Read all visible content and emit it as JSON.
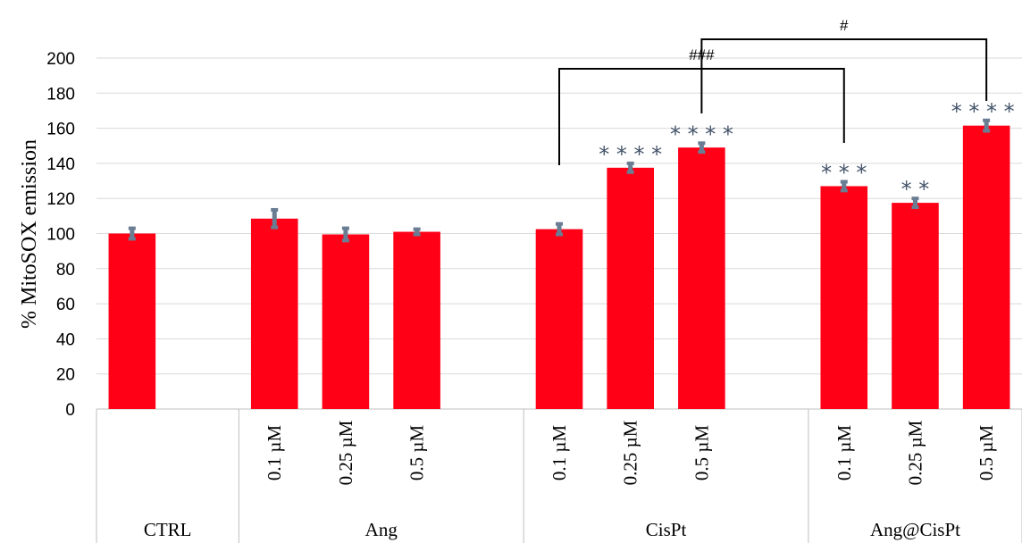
{
  "chart_data": {
    "type": "bar",
    "ylabel": "% MitoSOX emission",
    "ylim": [
      0,
      200
    ],
    "yticks": [
      "0",
      "20",
      "40",
      "60",
      "80",
      "100",
      "120",
      "140",
      "160",
      "180",
      "200"
    ],
    "grid": true,
    "groups": [
      {
        "name": "CTRL",
        "bars": [
          {
            "label": "",
            "value": 100,
            "error": 3,
            "sig": ""
          }
        ]
      },
      {
        "name": "Ang",
        "bars": [
          {
            "label": "0.1 µM",
            "value": 108.5,
            "error": 5,
            "sig": ""
          },
          {
            "label": "0.25 µM",
            "value": 99.5,
            "error": 3.5,
            "sig": ""
          },
          {
            "label": "0.5 µM",
            "value": 101,
            "error": 1.5,
            "sig": ""
          }
        ]
      },
      {
        "name": "CisPt",
        "bars": [
          {
            "label": "0.1 µM",
            "value": 102.5,
            "error": 3,
            "sig": ""
          },
          {
            "label": "0.25 µM",
            "value": 137.5,
            "error": 2.5,
            "sig": "****"
          },
          {
            "label": "0.5 µM",
            "value": 149,
            "error": 2.5,
            "sig": "****"
          }
        ]
      },
      {
        "name": "Ang@CisPt",
        "bars": [
          {
            "label": "0.1 µM",
            "value": 127,
            "error": 2.5,
            "sig": "***"
          },
          {
            "label": "0.25 µM",
            "value": 117.5,
            "error": 2.5,
            "sig": "**"
          },
          {
            "label": "0.5 µM",
            "value": 161.5,
            "error": 3,
            "sig": "****"
          }
        ]
      }
    ],
    "comparisons": [
      {
        "label": "###",
        "from": "CisPt 0.1 µM",
        "to": "Ang@CisPt 0.1 µM"
      },
      {
        "label": "#",
        "from": "CisPt 0.5 µM",
        "to": "Ang@CisPt 0.5 µM"
      }
    ],
    "colors": {
      "bar": "#ff0016",
      "error": "#6a7d93",
      "sig": "#44546a",
      "grid": "#d9d9d9",
      "axis": "#bfbfbf"
    }
  }
}
